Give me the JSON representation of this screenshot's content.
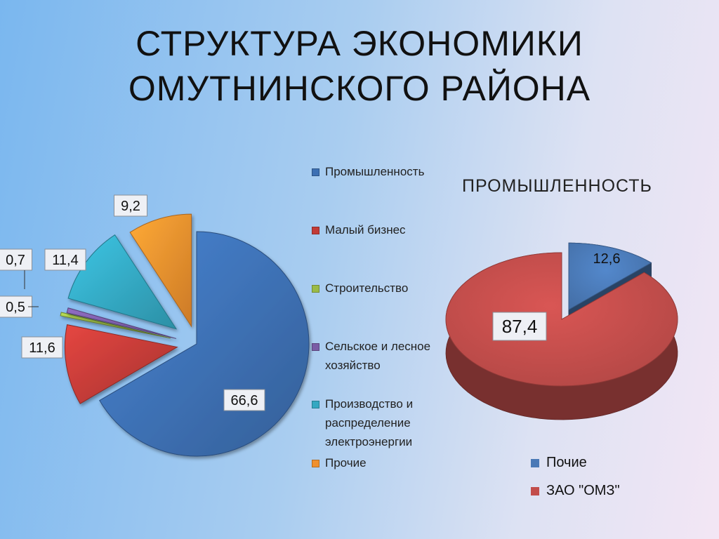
{
  "title_lines": [
    "СТРУКТУРА ЭКОНОМИКИ",
    "ОМУТНИНСКОГО РАЙОНА"
  ],
  "chart_data": [
    {
      "type": "pie",
      "title": "",
      "legend_position": "right",
      "categories": [
        "Промышленность",
        "Малый бизнес",
        "Строительство",
        "Сельское и лесное хозяйство",
        "Производство и распределение электроэнергии",
        "Прочие"
      ],
      "values": [
        66.6,
        11.6,
        0.5,
        0.7,
        11.4,
        9.2
      ],
      "data_labels": [
        "66,6",
        "11,6",
        "0,5",
        "0,7",
        "11,4",
        "9,2"
      ],
      "colors": [
        "#3d70b3",
        "#c23b37",
        "#9bbb47",
        "#7a5ca6",
        "#34a8c2",
        "#f0902e"
      ],
      "exploded": true
    },
    {
      "type": "pie",
      "title": "ПРОМЫШЛЕННОСТЬ",
      "legend_position": "bottom",
      "categories": [
        "Почие",
        "ЗАО \"ОМЗ\""
      ],
      "values": [
        12.6,
        87.4
      ],
      "data_labels": [
        "12,6",
        "87,4"
      ],
      "colors": [
        "#4a79b6",
        "#c24d4b"
      ],
      "three_d": true
    }
  ]
}
